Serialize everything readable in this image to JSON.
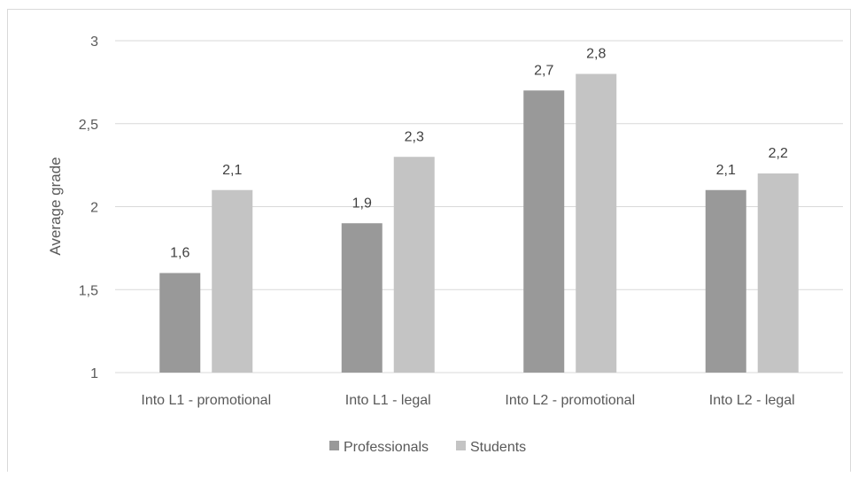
{
  "chart_data": {
    "type": "bar",
    "title": "",
    "xlabel": "",
    "ylabel": "Average grade",
    "ylim": [
      1,
      3
    ],
    "yticks": [
      1,
      1.5,
      2,
      2.5,
      3
    ],
    "ytick_labels": [
      "1",
      "1,5",
      "2",
      "2,5",
      "3"
    ],
    "grid": true,
    "legend_position": "bottom",
    "categories": [
      "Into L1 - promotional",
      "Into L1 - legal",
      "Into L2 - promotional",
      "Into L2 - legal"
    ],
    "series": [
      {
        "name": "Professionals",
        "color": "#999999",
        "values": [
          1.6,
          1.9,
          2.7,
          2.1
        ],
        "labels": [
          "1,6",
          "1,9",
          "2,7",
          "2,1"
        ]
      },
      {
        "name": "Students",
        "color": "#c4c4c4",
        "values": [
          2.1,
          2.3,
          2.8,
          2.2
        ],
        "labels": [
          "2,1",
          "2,3",
          "2,8",
          "2,2"
        ]
      }
    ]
  }
}
